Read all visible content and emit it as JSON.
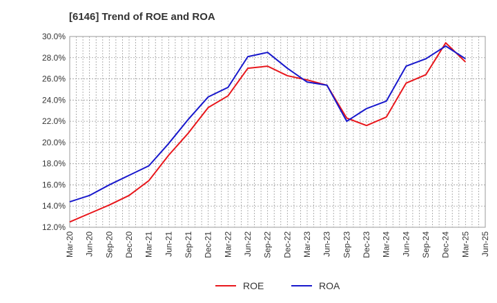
{
  "chart_data": {
    "type": "line",
    "title": "[6146]  Trend of ROE and ROA",
    "xlabel": "",
    "ylabel": "",
    "x": [
      "Mar-20",
      "Jun-20",
      "Sep-20",
      "Dec-20",
      "Mar-21",
      "Jun-21",
      "Sep-21",
      "Dec-21",
      "Mar-22",
      "Jun-22",
      "Sep-22",
      "Dec-22",
      "Mar-23",
      "Jun-23",
      "Sep-23",
      "Dec-23",
      "Mar-24",
      "Jun-24",
      "Sep-24",
      "Dec-24",
      "Mar-25",
      "Jun-25"
    ],
    "ylim": [
      12.0,
      30.0
    ],
    "yticks": [
      "12.0%",
      "14.0%",
      "16.0%",
      "18.0%",
      "20.0%",
      "22.0%",
      "24.0%",
      "26.0%",
      "28.0%",
      "30.0%"
    ],
    "grid": true,
    "legend_position": "bottom-center",
    "series": [
      {
        "name": "ROE",
        "color": "#e8161b",
        "values": [
          12.5,
          13.3,
          14.1,
          15.0,
          16.4,
          18.8,
          20.9,
          23.3,
          24.4,
          27.0,
          27.2,
          26.3,
          25.9,
          25.4,
          22.3,
          21.6,
          22.4,
          25.6,
          26.4,
          29.4,
          27.6,
          null
        ]
      },
      {
        "name": "ROA",
        "color": "#1717cc",
        "values": [
          14.4,
          15.0,
          16.0,
          16.9,
          17.8,
          19.9,
          22.2,
          24.3,
          25.2,
          28.1,
          28.5,
          27.0,
          25.7,
          25.4,
          22.0,
          23.2,
          23.9,
          27.2,
          27.9,
          29.1,
          27.9,
          null
        ]
      }
    ]
  }
}
